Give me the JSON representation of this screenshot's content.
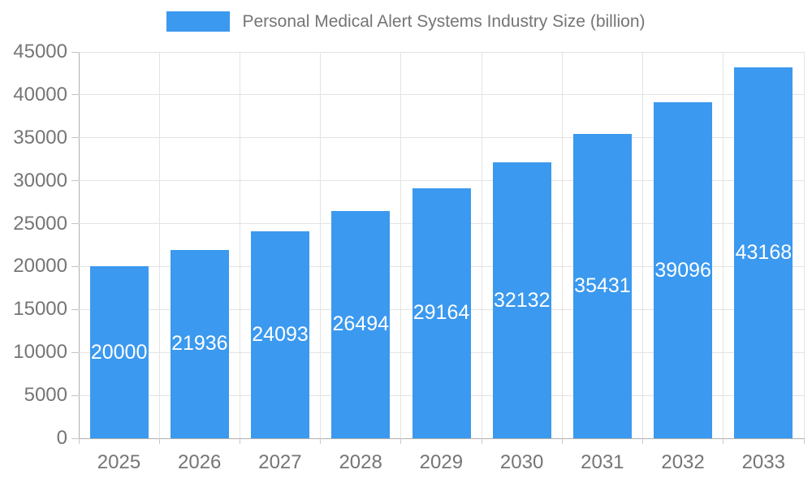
{
  "legend": {
    "label": "Personal Medical Alert Systems Industry Size (billion)"
  },
  "chart_data": {
    "type": "bar",
    "title": "Personal Medical Alert Systems Industry Size (billion)",
    "categories": [
      "2025",
      "2026",
      "2027",
      "2028",
      "2029",
      "2030",
      "2031",
      "2032",
      "2033"
    ],
    "series": [
      {
        "name": "Personal Medical Alert Systems Industry Size (billion)",
        "values": [
          20000,
          21936,
          24093,
          26494,
          29164,
          32132,
          35431,
          39096,
          43168
        ]
      }
    ],
    "xlabel": "",
    "ylabel": "",
    "ylim": [
      0,
      45000
    ],
    "yticks": [
      0,
      5000,
      10000,
      15000,
      20000,
      25000,
      30000,
      35000,
      40000,
      45000
    ],
    "grid": true,
    "legend_position": "top",
    "bar_labels_inside": true
  },
  "colors": {
    "bar": "#3b99ef",
    "bar_label": "#ffffff",
    "axis_text": "#757575",
    "title_text": "#757575",
    "grid_line": "#e3e3e3",
    "axis_line": "#b0b0b0"
  }
}
